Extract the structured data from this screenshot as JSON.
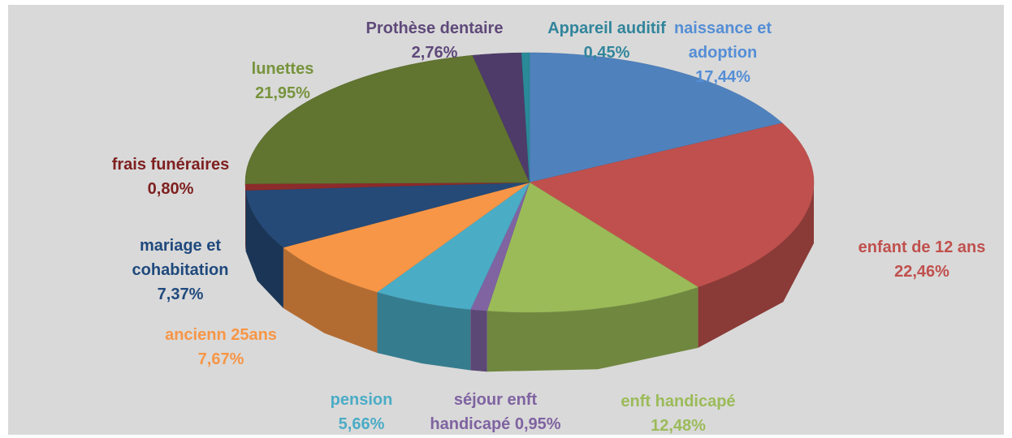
{
  "chart_data": {
    "type": "pie3d",
    "categories": [
      "naissance et adoption",
      "enfant de 12 ans",
      "enft handicapé",
      "séjour enft handicapé",
      "pension",
      "ancienn 25ans",
      "mariage et cohabitation",
      "frais funéraires",
      "lunettes",
      "Prothèse dentaire",
      "Appareil auditif"
    ],
    "values": [
      17.44,
      22.46,
      12.48,
      0.95,
      5.66,
      7.67,
      7.37,
      0.8,
      21.95,
      2.76,
      0.45
    ],
    "value_labels": [
      "17,44%",
      "22,46%",
      "12,48%",
      "0,95%",
      "5,66%",
      "7,67%",
      "7,37%",
      "0,80%",
      "21,95%",
      "2,76%",
      "0,45%"
    ],
    "colors": [
      "#4f81bd",
      "#c0504d",
      "#9bbb59",
      "#8064a2",
      "#4bacc6",
      "#f79646",
      "#254a78",
      "#8c2b2b",
      "#617430",
      "#4e3b6a",
      "#2a8a98"
    ],
    "label_colors": [
      "#558ed5",
      "#c0504d",
      "#9bbb59",
      "#7f63a1",
      "#4bacc6",
      "#f79646",
      "#1f497d",
      "#7f2020",
      "#77933c",
      "#5f497a",
      "#31859c"
    ]
  }
}
